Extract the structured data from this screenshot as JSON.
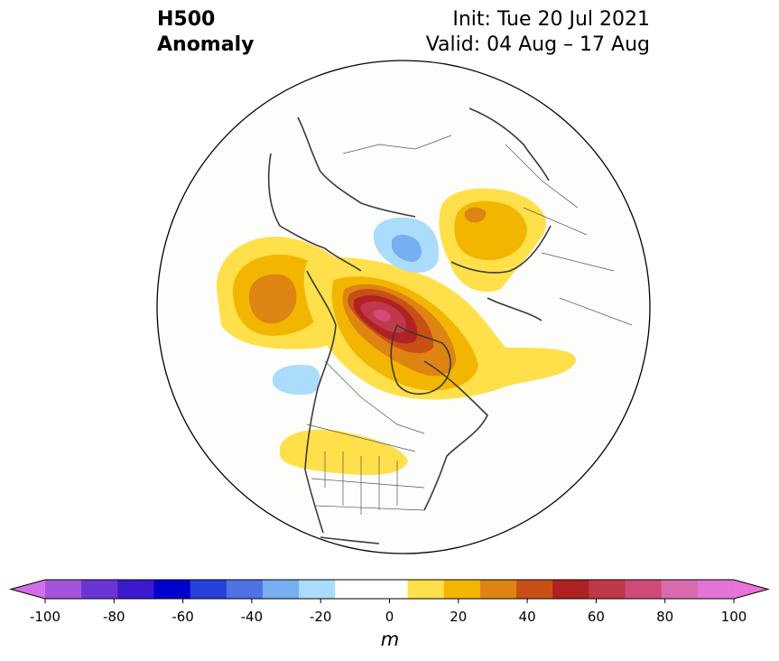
{
  "header": {
    "title_line1": "H500",
    "title_line2": "Anomaly",
    "init_text": "Init: Tue 20 Jul 2021",
    "valid_text": "Valid: 04 Aug – 17 Aug"
  },
  "map": {
    "projection": "north-polar-stereographic",
    "field": "500 hPa geopotential height anomaly",
    "anomaly_regions": [
      {
        "location": "Beaufort Sea / northern Canada",
        "level_max": 80,
        "sign": "positive"
      },
      {
        "location": "North Pacific / Bering Sea",
        "level_max": 40,
        "sign": "positive"
      },
      {
        "location": "Western Russia / Scandinavia",
        "level_max": 30,
        "sign": "positive"
      },
      {
        "location": "Northern United States",
        "level_max": 20,
        "sign": "positive"
      },
      {
        "location": "North Atlantic south of Greenland",
        "level_max": 20,
        "sign": "positive"
      },
      {
        "location": "Barents / Kara Sea",
        "level_max": -30,
        "sign": "negative"
      },
      {
        "location": "Northeast Pacific",
        "level_max": -20,
        "sign": "negative"
      }
    ]
  },
  "colorbar": {
    "unit": "m",
    "ticks": [
      "-100",
      "-80",
      "-60",
      "-40",
      "-20",
      "0",
      "20",
      "40",
      "60",
      "80",
      "100"
    ],
    "levels": [
      -100,
      -90,
      -80,
      -70,
      -60,
      -50,
      -40,
      -30,
      -20,
      -10,
      10,
      20,
      30,
      40,
      50,
      60,
      70,
      80,
      90,
      100
    ],
    "colors": [
      "#a354db",
      "#6b34d6",
      "#3c18cf",
      "#0000cc",
      "#2640d8",
      "#4f72e6",
      "#78aef2",
      "#abdcfb",
      "#ffffff",
      "#ffffff",
      "#ffe04a",
      "#f2b600",
      "#de8412",
      "#c85015",
      "#b02222",
      "#c0384a",
      "#d04b78",
      "#da6aae",
      "#e274d6"
    ],
    "under_color": "#d36fe6",
    "over_color": "#e774d6"
  }
}
